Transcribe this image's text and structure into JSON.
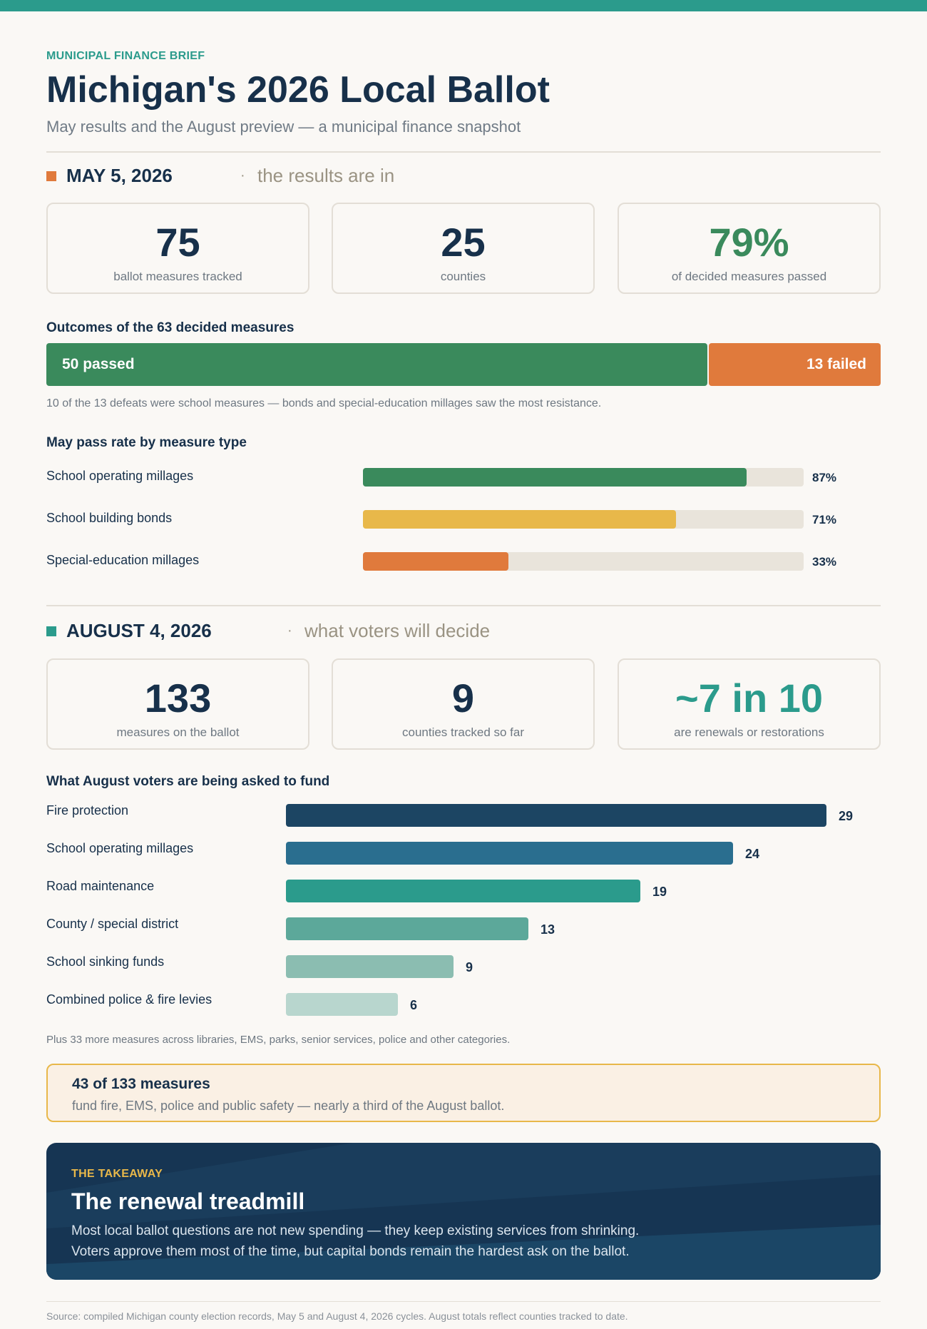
{
  "header": {
    "kicker": "MUNICIPAL FINANCE BRIEF",
    "title": "Michigan's 2026 Local Ballot",
    "subtitle": "May results and the August preview — a municipal finance snapshot"
  },
  "colors": {
    "teal": "#2b9b8c",
    "orange": "#e07a3c",
    "green": "#3a8a5c",
    "navy": "#17304a",
    "gold": "#e8b84a"
  },
  "may": {
    "date": "MAY 5, 2026",
    "dot": "·",
    "tag": "the results are in",
    "stats": [
      {
        "value": "75",
        "label": "ballot measures tracked"
      },
      {
        "value": "25",
        "label": "counties"
      },
      {
        "value": "79%",
        "label": "of decided measures passed"
      }
    ],
    "outcomes_title": "Outcomes of the 63 decided measures",
    "passed_label": "50 passed",
    "failed_label": "13 failed",
    "outcomes_note": "10 of the 13 defeats were school measures — bonds and special-education millages saw the most resistance.",
    "pass_rate_title": "May pass rate by measure type"
  },
  "august": {
    "date": "AUGUST 4, 2026",
    "dot": "·",
    "tag": "what voters will decide",
    "stats": [
      {
        "value": "133",
        "label": "measures on the ballot"
      },
      {
        "value": "9",
        "label": "counties tracked so far"
      },
      {
        "value": "~7 in 10",
        "label": "are renewals or restorations"
      }
    ],
    "fund_title": "What August voters are being asked to fund",
    "fund_note": "Plus 33 more measures across libraries, EMS, parks, senior services, police and other categories."
  },
  "callout": {
    "headline": "43 of 133 measures",
    "body": "fund fire, EMS, police and public safety — nearly a third of the August ballot."
  },
  "takeaway": {
    "kicker": "THE TAKEAWAY",
    "title": "The renewal treadmill",
    "line1": "Most local ballot questions are not new spending — they keep existing services from shrinking.",
    "line2": "Voters approve them most of the time, but capital bonds remain the hardest ask on the ballot."
  },
  "source": "Source: compiled Michigan county election records, May 5 and August 4, 2026 cycles. August totals reflect counties tracked to date.",
  "chart_data": [
    {
      "type": "bar",
      "title": "Outcomes of the 63 decided measures",
      "orientation": "horizontal-stacked",
      "categories": [
        "passed",
        "failed"
      ],
      "values": [
        50,
        13
      ],
      "colors": [
        "#3a8a5c",
        "#e07a3c"
      ]
    },
    {
      "type": "bar",
      "title": "May pass rate by measure type",
      "orientation": "horizontal",
      "categories": [
        "School operating millages",
        "School building bonds",
        "Special-education millages"
      ],
      "values": [
        87,
        71,
        33
      ],
      "value_labels": [
        "87%",
        "71%",
        "33%"
      ],
      "colors": [
        "#3a8a5c",
        "#e8b84a",
        "#e07a3c"
      ],
      "xlim": [
        0,
        100
      ]
    },
    {
      "type": "bar",
      "title": "What August voters are being asked to fund",
      "orientation": "horizontal",
      "categories": [
        "Fire protection",
        "School operating millages",
        "Road maintenance",
        "County / special district",
        "School sinking funds",
        "Combined police & fire levies"
      ],
      "values": [
        29,
        24,
        19,
        13,
        9,
        6
      ],
      "colors": [
        "#1c4563",
        "#2a6e8f",
        "#2b9b8c",
        "#5ca89a",
        "#8bbdb1",
        "#b8d6ce"
      ],
      "xlim": [
        0,
        29
      ]
    }
  ]
}
